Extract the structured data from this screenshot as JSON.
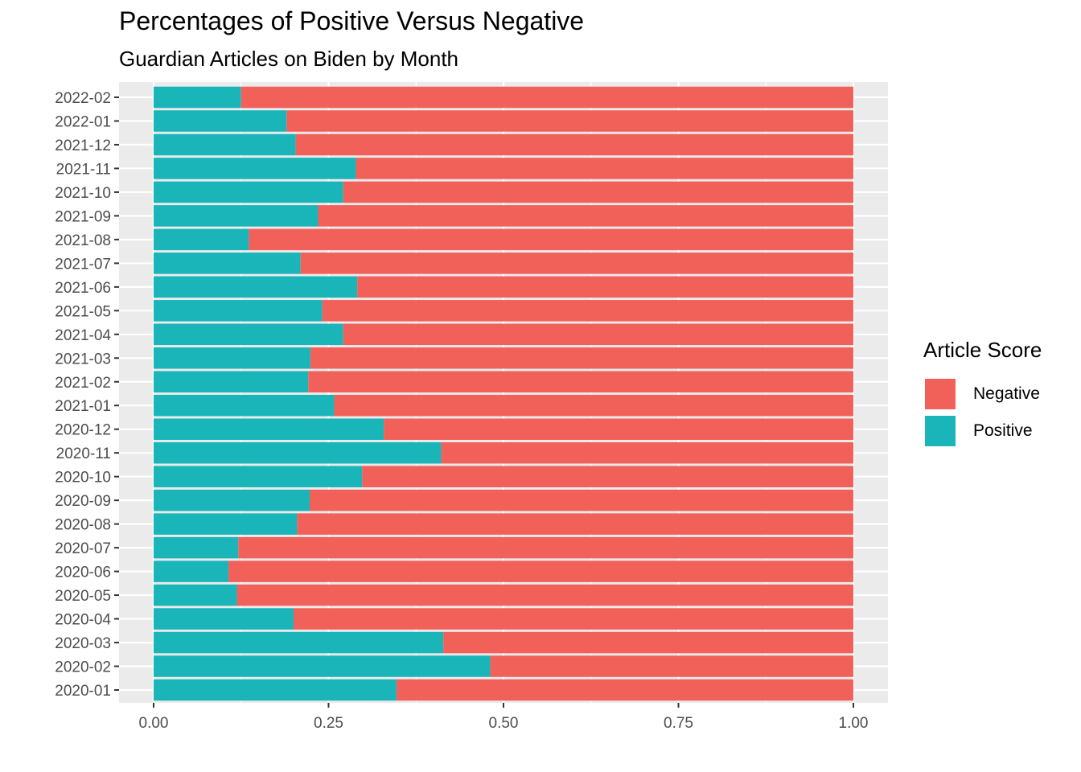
{
  "chart_data": {
    "type": "bar",
    "orientation": "horizontal",
    "stacked": true,
    "title": "Percentages of Positive Versus Negative",
    "subtitle": "Guardian Articles on Biden by Month",
    "xlabel": "",
    "ylabel": "",
    "xlim": [
      0,
      1
    ],
    "x_ticks": [
      "0.00",
      "0.25",
      "0.50",
      "0.75",
      "1.00"
    ],
    "categories": [
      "2020-01",
      "2020-02",
      "2020-03",
      "2020-04",
      "2020-05",
      "2020-06",
      "2020-07",
      "2020-08",
      "2020-09",
      "2020-10",
      "2020-11",
      "2020-12",
      "2021-01",
      "2021-02",
      "2021-03",
      "2021-04",
      "2021-05",
      "2021-06",
      "2021-07",
      "2021-08",
      "2021-09",
      "2021-10",
      "2021-11",
      "2021-12",
      "2022-01",
      "2022-02"
    ],
    "series": [
      {
        "name": "Positive",
        "color": "#19B5B9",
        "values": [
          0.347,
          0.481,
          0.414,
          0.2,
          0.119,
          0.107,
          0.121,
          0.205,
          0.223,
          0.298,
          0.411,
          0.329,
          0.258,
          0.221,
          0.224,
          0.271,
          0.241,
          0.291,
          0.21,
          0.136,
          0.235,
          0.271,
          0.289,
          0.203,
          0.19,
          0.125
        ]
      },
      {
        "name": "Negative",
        "color": "#F2605A",
        "values": [
          0.653,
          0.519,
          0.586,
          0.8,
          0.881,
          0.893,
          0.879,
          0.795,
          0.777,
          0.702,
          0.589,
          0.671,
          0.742,
          0.779,
          0.776,
          0.729,
          0.759,
          0.709,
          0.79,
          0.864,
          0.765,
          0.729,
          0.711,
          0.797,
          0.81,
          0.875
        ]
      }
    ],
    "grid": true,
    "legend": {
      "title": "Article Score",
      "position": "right",
      "entries": [
        "Negative",
        "Positive"
      ]
    }
  }
}
